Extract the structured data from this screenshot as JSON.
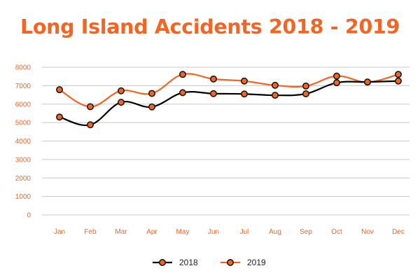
{
  "colors": {
    "title": "#f26522",
    "tick": "#f26522",
    "grid": "#c8c8c8",
    "series_2018": "#000000",
    "series_2019": "#f26522",
    "marker_fill": "#f26522",
    "marker_stroke": "#1a1a1a"
  },
  "chart_data": {
    "type": "line",
    "title": "Long Island Accidents 2018 - 2019",
    "xlabel": "",
    "ylabel": "",
    "categories": [
      "Jan",
      "Feb",
      "Mar",
      "Apr",
      "May",
      "Jun",
      "Jul",
      "Aug",
      "Sep",
      "Oct",
      "Nov",
      "Dec"
    ],
    "ylim": [
      0,
      8000
    ],
    "yticks": [
      0,
      1000,
      2000,
      3000,
      4000,
      5000,
      6000,
      7000,
      8000
    ],
    "grid": "horizontal",
    "legend": "bottom",
    "smooth": true,
    "series": [
      {
        "name": "2018",
        "values": [
          5300,
          4880,
          6100,
          5850,
          6620,
          6570,
          6550,
          6480,
          6560,
          7160,
          7200,
          7250
        ]
      },
      {
        "name": "2019",
        "values": [
          6780,
          5860,
          6720,
          6580,
          7610,
          7360,
          7250,
          7020,
          6980,
          7520,
          7190,
          7610
        ]
      }
    ]
  }
}
